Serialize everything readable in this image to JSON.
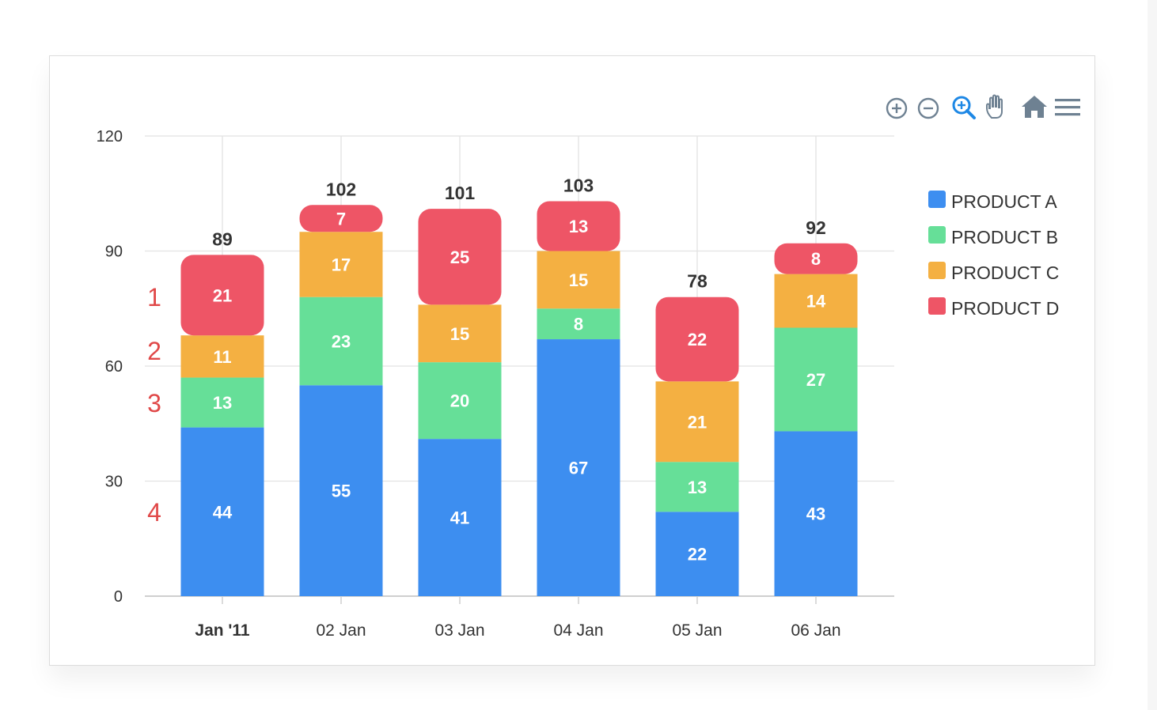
{
  "chart_data": {
    "type": "bar",
    "stacked": true,
    "categories": [
      "Jan '11",
      "02 Jan",
      "03 Jan",
      "04 Jan",
      "05 Jan",
      "06 Jan"
    ],
    "series": [
      {
        "name": "PRODUCT A",
        "color": "#3d8ef0",
        "values": [
          44,
          55,
          41,
          67,
          22,
          43
        ]
      },
      {
        "name": "PRODUCT B",
        "color": "#66df98",
        "values": [
          13,
          23,
          20,
          8,
          13,
          27
        ]
      },
      {
        "name": "PRODUCT C",
        "color": "#f4b042",
        "values": [
          11,
          17,
          15,
          15,
          21,
          14
        ]
      },
      {
        "name": "PRODUCT D",
        "color": "#ee5566",
        "values": [
          21,
          7,
          25,
          13,
          22,
          8
        ]
      }
    ],
    "totals": [
      89,
      102,
      101,
      103,
      78,
      92
    ],
    "ylim": [
      0,
      120
    ],
    "yticks": [
      0,
      30,
      60,
      90,
      120
    ],
    "grid": true,
    "legend_position": "right",
    "side_annotations": [
      "1",
      "2",
      "3",
      "4"
    ]
  },
  "toolbar": {
    "icons": [
      "zoom-in-icon",
      "zoom-out-icon",
      "selection-zoom-icon",
      "pan-hand-icon",
      "reset-home-icon",
      "menu-icon"
    ],
    "active_color": "#1e88e5",
    "inactive_color": "#6e8192"
  }
}
